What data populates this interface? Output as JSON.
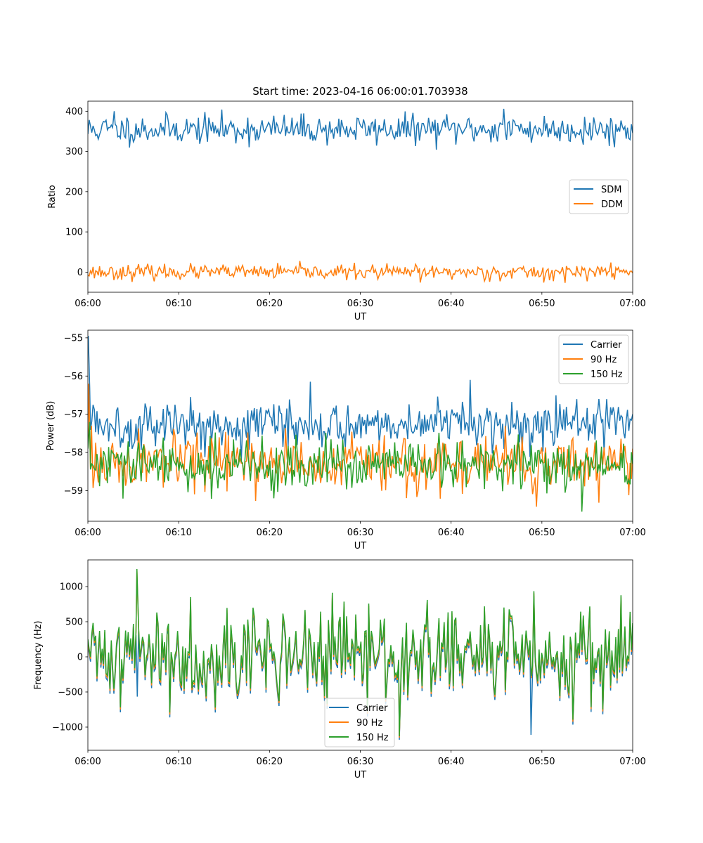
{
  "figure_title": "Start time: 2023-04-16 06:00:01.703938",
  "colors": {
    "blue": "#1f77b4",
    "orange": "#ff7f0e",
    "green": "#2ca02c"
  },
  "chart_data": [
    {
      "type": "line",
      "title": "Start time: 2023-04-16 06:00:01.703938",
      "xlabel": "UT",
      "ylabel": "Ratio",
      "xlim": [
        "06:00",
        "07:00"
      ],
      "ylim": [
        -50,
        425
      ],
      "x_ticks": [
        "06:00",
        "06:10",
        "06:20",
        "06:30",
        "06:40",
        "06:50",
        "07:00"
      ],
      "y_ticks": [
        0,
        100,
        200,
        300,
        400
      ],
      "legend": "center-right",
      "grid": false,
      "series": [
        {
          "name": "SDM",
          "color": "#1f77b4",
          "mean": 355,
          "spread": 18,
          "points": 420,
          "seed": 11,
          "fixed": [
            [
              0,
              343
            ],
            [
              2.9,
              400
            ],
            [
              16.3,
              320
            ],
            [
              45.8,
              406
            ],
            [
              60,
              346
            ]
          ]
        },
        {
          "name": "DDM",
          "color": "#ff7f0e",
          "mean": 0,
          "spread": 9,
          "points": 420,
          "seed": 23,
          "fixed": [
            [
              0,
              -8
            ],
            [
              36.6,
              -26
            ],
            [
              50.2,
              -26
            ],
            [
              57.6,
              24
            ],
            [
              60,
              -2
            ]
          ]
        }
      ]
    },
    {
      "type": "line",
      "xlabel": "UT",
      "ylabel": "Power (dB)",
      "xlim": [
        "06:00",
        "07:00"
      ],
      "ylim": [
        -59.8,
        -54.8
      ],
      "x_ticks": [
        "06:00",
        "06:10",
        "06:20",
        "06:30",
        "06:40",
        "06:50",
        "07:00"
      ],
      "y_ticks": [
        -55,
        -56,
        -57,
        -58,
        -59
      ],
      "legend": "top-right",
      "grid": false,
      "series": [
        {
          "name": "Carrier",
          "color": "#1f77b4",
          "mean": -57.25,
          "spread": 0.3,
          "points": 420,
          "seed": 5,
          "fixed": [
            [
              0,
              -58.2
            ],
            [
              0.05,
              -54.95
            ],
            [
              0.2,
              -56.3
            ],
            [
              24.5,
              -56.15
            ],
            [
              42.1,
              -56.1
            ],
            [
              60,
              -57.0
            ]
          ]
        },
        {
          "name": "90 Hz",
          "color": "#ff7f0e",
          "mean": -58.3,
          "spread": 0.35,
          "points": 420,
          "seed": 17,
          "fixed": [
            [
              0,
              -57.7
            ],
            [
              0.1,
              -56.2
            ],
            [
              0.4,
              -57.3
            ],
            [
              49.4,
              -59.42
            ],
            [
              60,
              -57.9
            ]
          ]
        },
        {
          "name": "150 Hz",
          "color": "#2ca02c",
          "mean": -58.35,
          "spread": 0.33,
          "points": 420,
          "seed": 29,
          "fixed": [
            [
              0,
              -57.9
            ],
            [
              0.2,
              -57.2
            ],
            [
              54.4,
              -59.55
            ],
            [
              60,
              -58.3
            ]
          ]
        }
      ]
    },
    {
      "type": "line",
      "xlabel": "UT",
      "ylabel": "Frequency (Hz)",
      "xlim": [
        "06:00",
        "07:00"
      ],
      "ylim": [
        -1330,
        1380
      ],
      "x_ticks": [
        "06:00",
        "06:10",
        "06:20",
        "06:30",
        "06:40",
        "06:50",
        "07:00"
      ],
      "y_ticks": [
        -1000,
        -500,
        0,
        500,
        1000
      ],
      "legend": "lower-center",
      "grid": false,
      "series": [
        {
          "name": "Carrier",
          "color": "#1f77b4",
          "mean": -20,
          "spread": 330,
          "points": 420,
          "seed": 41,
          "fixed": [
            [
              0,
              150
            ],
            [
              34.3,
              -1180
            ],
            [
              48.8,
              -1110
            ],
            [
              60,
              300
            ]
          ]
        },
        {
          "name": "90 Hz",
          "color": "#ff7f0e",
          "mean": 20,
          "spread": 330,
          "points": 420,
          "seed": 41,
          "fixed": [
            [
              0,
              200
            ],
            [
              5.4,
              1240
            ],
            [
              34.3,
              -1150
            ],
            [
              60,
              380
            ]
          ]
        },
        {
          "name": "150 Hz",
          "color": "#2ca02c",
          "mean": 50,
          "spread": 330,
          "points": 420,
          "seed": 41,
          "fixed": [
            [
              0,
              250
            ],
            [
              5.4,
              1250
            ],
            [
              34.3,
              -1130
            ],
            [
              60,
              480
            ]
          ]
        }
      ]
    }
  ]
}
